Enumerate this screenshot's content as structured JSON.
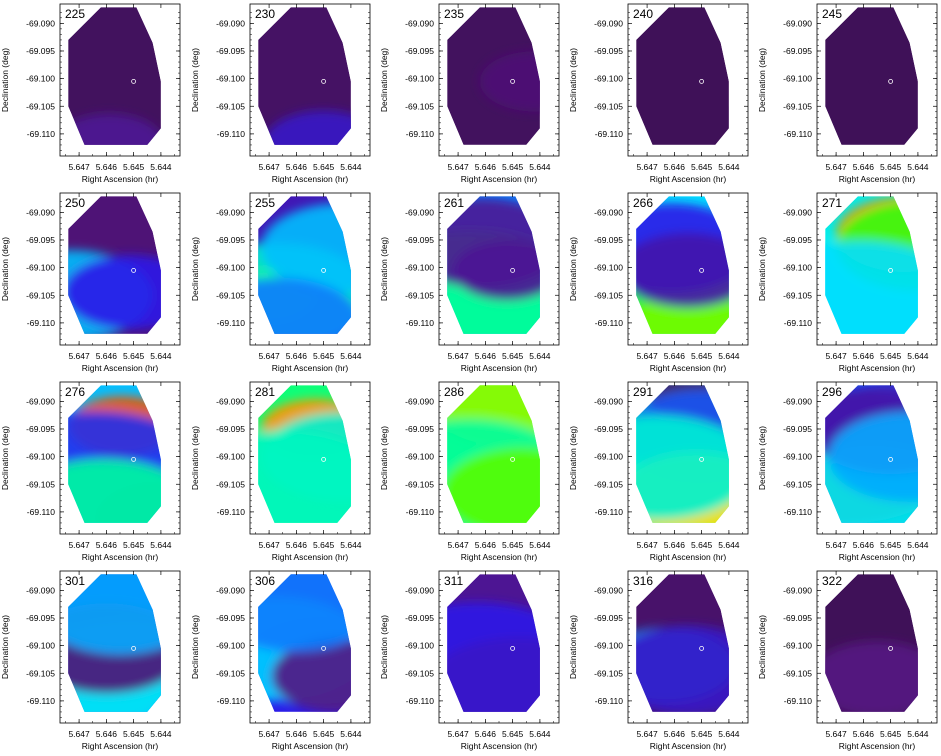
{
  "chart_data": {
    "type": "heatmap",
    "layout": {
      "rows": 4,
      "cols": 5
    },
    "xlabel": "Right Ascension (hr)",
    "ylabel": "Declination (deg)",
    "x_ticks": [
      "5.647",
      "5.646",
      "5.645",
      "5.644"
    ],
    "y_ticks": [
      "-69.090",
      "-69.095",
      "-69.100",
      "-69.105",
      "-69.110"
    ],
    "x_tick_values": [
      5.647,
      5.646,
      5.645,
      5.644
    ],
    "y_tick_values": [
      -69.09,
      -69.095,
      -69.1,
      -69.105,
      -69.11
    ],
    "xlim": [
      5.6477,
      5.6433
    ],
    "ylim": [
      -69.114,
      -69.0865
    ],
    "marker": {
      "ra": 5.645,
      "dec": -69.1005
    },
    "region_outline": [
      [
        5.6462,
        -69.0871
      ],
      [
        5.6449,
        -69.0871
      ],
      [
        5.6443,
        -69.0935
      ],
      [
        5.644,
        -69.1005
      ],
      [
        5.644,
        -69.109
      ],
      [
        5.6445,
        -69.112
      ],
      [
        5.6468,
        -69.112
      ],
      [
        5.6474,
        -69.105
      ],
      [
        5.6474,
        -69.093
      ]
    ],
    "panels": [
      {
        "label": "225",
        "level": 0.04,
        "features": [
          {
            "ra": 5.6459,
            "dec": -69.1118,
            "v": 0.12,
            "r": 0.002
          }
        ]
      },
      {
        "label": "230",
        "level": 0.05,
        "features": [
          {
            "ra": 5.645,
            "dec": -69.1118,
            "v": 0.18,
            "r": 0.0022
          }
        ]
      },
      {
        "label": "235",
        "level": 0.04,
        "features": [
          {
            "ra": 5.6442,
            "dec": -69.1005,
            "v": 0.08,
            "r": 0.002
          }
        ]
      },
      {
        "label": "240",
        "level": 0.03,
        "features": []
      },
      {
        "label": "245",
        "level": 0.03,
        "features": []
      },
      {
        "label": "250",
        "level": 0.08,
        "features": [
          {
            "ra": 5.6473,
            "dec": -69.105,
            "v": 0.42,
            "r": 0.003
          },
          {
            "ra": 5.6451,
            "dec": -69.1045,
            "v": 0.22,
            "r": 0.0025
          }
        ]
      },
      {
        "label": "255",
        "level": 0.16,
        "features": [
          {
            "ra": 5.6471,
            "dec": -69.105,
            "v": 0.82,
            "r": 0.0018
          },
          {
            "ra": 5.6467,
            "dec": -69.105,
            "v": 0.52,
            "r": 0.0035
          },
          {
            "ra": 5.6443,
            "dec": -69.0965,
            "v": 0.42,
            "r": 0.003
          },
          {
            "ra": 5.6466,
            "dec": -69.11,
            "v": 0.35,
            "r": 0.003
          }
        ]
      },
      {
        "label": "261",
        "level": 0.36,
        "features": [
          {
            "ra": 5.6466,
            "dec": -69.1055,
            "v": 0.6,
            "r": 0.0045
          },
          {
            "ra": 5.6445,
            "dec": -69.108,
            "v": 0.55,
            "r": 0.004
          },
          {
            "ra": 5.6461,
            "dec": -69.0955,
            "v": 0.12,
            "r": 0.003
          },
          {
            "ra": 5.6452,
            "dec": -69.1005,
            "v": 0.12,
            "r": 0.002
          }
        ]
      },
      {
        "label": "266",
        "level": 0.45,
        "features": [
          {
            "ra": 5.6452,
            "dec": -69.1065,
            "v": 0.65,
            "r": 0.0045
          },
          {
            "ra": 5.6444,
            "dec": -69.11,
            "v": 0.7,
            "r": 0.003
          },
          {
            "ra": 5.6461,
            "dec": -69.0965,
            "v": 0.22,
            "r": 0.003
          },
          {
            "ra": 5.6455,
            "dec": -69.1005,
            "v": 0.15,
            "r": 0.0025
          }
        ]
      },
      {
        "label": "271",
        "level": 0.48,
        "features": [
          {
            "ra": 5.6445,
            "dec": -69.094,
            "v": 0.92,
            "r": 0.0025
          },
          {
            "ra": 5.644,
            "dec": -69.096,
            "v": 0.65,
            "r": 0.003
          },
          {
            "ra": 5.6461,
            "dec": -69.106,
            "v": 0.45,
            "r": 0.004
          }
        ]
      },
      {
        "label": "276",
        "level": 0.42,
        "features": [
          {
            "ra": 5.6454,
            "dec": -69.0945,
            "v": 0.96,
            "r": 0.002
          },
          {
            "ra": 5.6441,
            "dec": -69.111,
            "v": 0.92,
            "r": 0.0022
          },
          {
            "ra": 5.6464,
            "dec": -69.104,
            "v": 0.25,
            "r": 0.0045
          },
          {
            "ra": 5.6461,
            "dec": -69.11,
            "v": 0.55,
            "r": 0.0035
          }
        ]
      },
      {
        "label": "281",
        "level": 0.58,
        "features": [
          {
            "ra": 5.6453,
            "dec": -69.095,
            "v": 0.9,
            "r": 0.002
          },
          {
            "ra": 5.6443,
            "dec": -69.1,
            "v": 0.5,
            "r": 0.003
          },
          {
            "ra": 5.6465,
            "dec": -69.106,
            "v": 0.52,
            "r": 0.004
          }
        ]
      },
      {
        "label": "286",
        "level": 0.62,
        "features": [
          {
            "ra": 5.6451,
            "dec": -69.09,
            "v": 0.72,
            "r": 0.003
          },
          {
            "ra": 5.6466,
            "dec": -69.104,
            "v": 0.55,
            "r": 0.004
          },
          {
            "ra": 5.6446,
            "dec": -69.1065,
            "v": 0.68,
            "r": 0.003
          }
        ]
      },
      {
        "label": "291",
        "level": 0.56,
        "features": [
          {
            "ra": 5.6448,
            "dec": -69.0885,
            "v": 0.05,
            "r": 0.0022
          },
          {
            "ra": 5.645,
            "dec": -69.096,
            "v": 0.3,
            "r": 0.003
          },
          {
            "ra": 5.6452,
            "dec": -69.1068,
            "v": 0.82,
            "r": 0.0028
          },
          {
            "ra": 5.6466,
            "dec": -69.102,
            "v": 0.5,
            "r": 0.0035
          }
        ]
      },
      {
        "label": "296",
        "level": 0.3,
        "features": [
          {
            "ra": 5.6468,
            "dec": -69.1,
            "v": 0.12,
            "r": 0.0045
          },
          {
            "ra": 5.6457,
            "dec": -69.107,
            "v": 0.48,
            "r": 0.0035
          },
          {
            "ra": 5.645,
            "dec": -69.095,
            "v": 0.15,
            "r": 0.003
          },
          {
            "ra": 5.6443,
            "dec": -69.1,
            "v": 0.4,
            "r": 0.003
          }
        ]
      },
      {
        "label": "301",
        "level": 0.22,
        "features": [
          {
            "ra": 5.6471,
            "dec": -69.106,
            "v": 0.55,
            "r": 0.0035
          },
          {
            "ra": 5.6452,
            "dec": -69.106,
            "v": 0.45,
            "r": 0.004
          },
          {
            "ra": 5.646,
            "dec": -69.1005,
            "v": 0.08,
            "r": 0.003
          },
          {
            "ra": 5.6455,
            "dec": -69.0935,
            "v": 0.4,
            "r": 0.003
          }
        ]
      },
      {
        "label": "306",
        "level": 0.22,
        "features": [
          {
            "ra": 5.6468,
            "dec": -69.1005,
            "v": 0.45,
            "r": 0.0035
          },
          {
            "ra": 5.645,
            "dec": -69.103,
            "v": 0.42,
            "r": 0.003
          },
          {
            "ra": 5.6444,
            "dec": -69.1055,
            "v": 0.1,
            "r": 0.0025
          },
          {
            "ra": 5.646,
            "dec": -69.093,
            "v": 0.35,
            "r": 0.003
          }
        ]
      },
      {
        "label": "311",
        "level": 0.12,
        "features": [
          {
            "ra": 5.6463,
            "dec": -69.103,
            "v": 0.22,
            "r": 0.004
          },
          {
            "ra": 5.6448,
            "dec": -69.108,
            "v": 0.18,
            "r": 0.0035
          }
        ]
      },
      {
        "label": "316",
        "level": 0.06,
        "features": [
          {
            "ra": 5.6463,
            "dec": -69.1035,
            "v": 0.38,
            "r": 0.0025
          },
          {
            "ra": 5.6455,
            "dec": -69.1045,
            "v": 0.18,
            "r": 0.003
          }
        ]
      },
      {
        "label": "322",
        "level": 0.03,
        "features": [
          {
            "ra": 5.6455,
            "dec": -69.106,
            "v": 0.1,
            "r": 0.0025
          }
        ]
      }
    ]
  }
}
